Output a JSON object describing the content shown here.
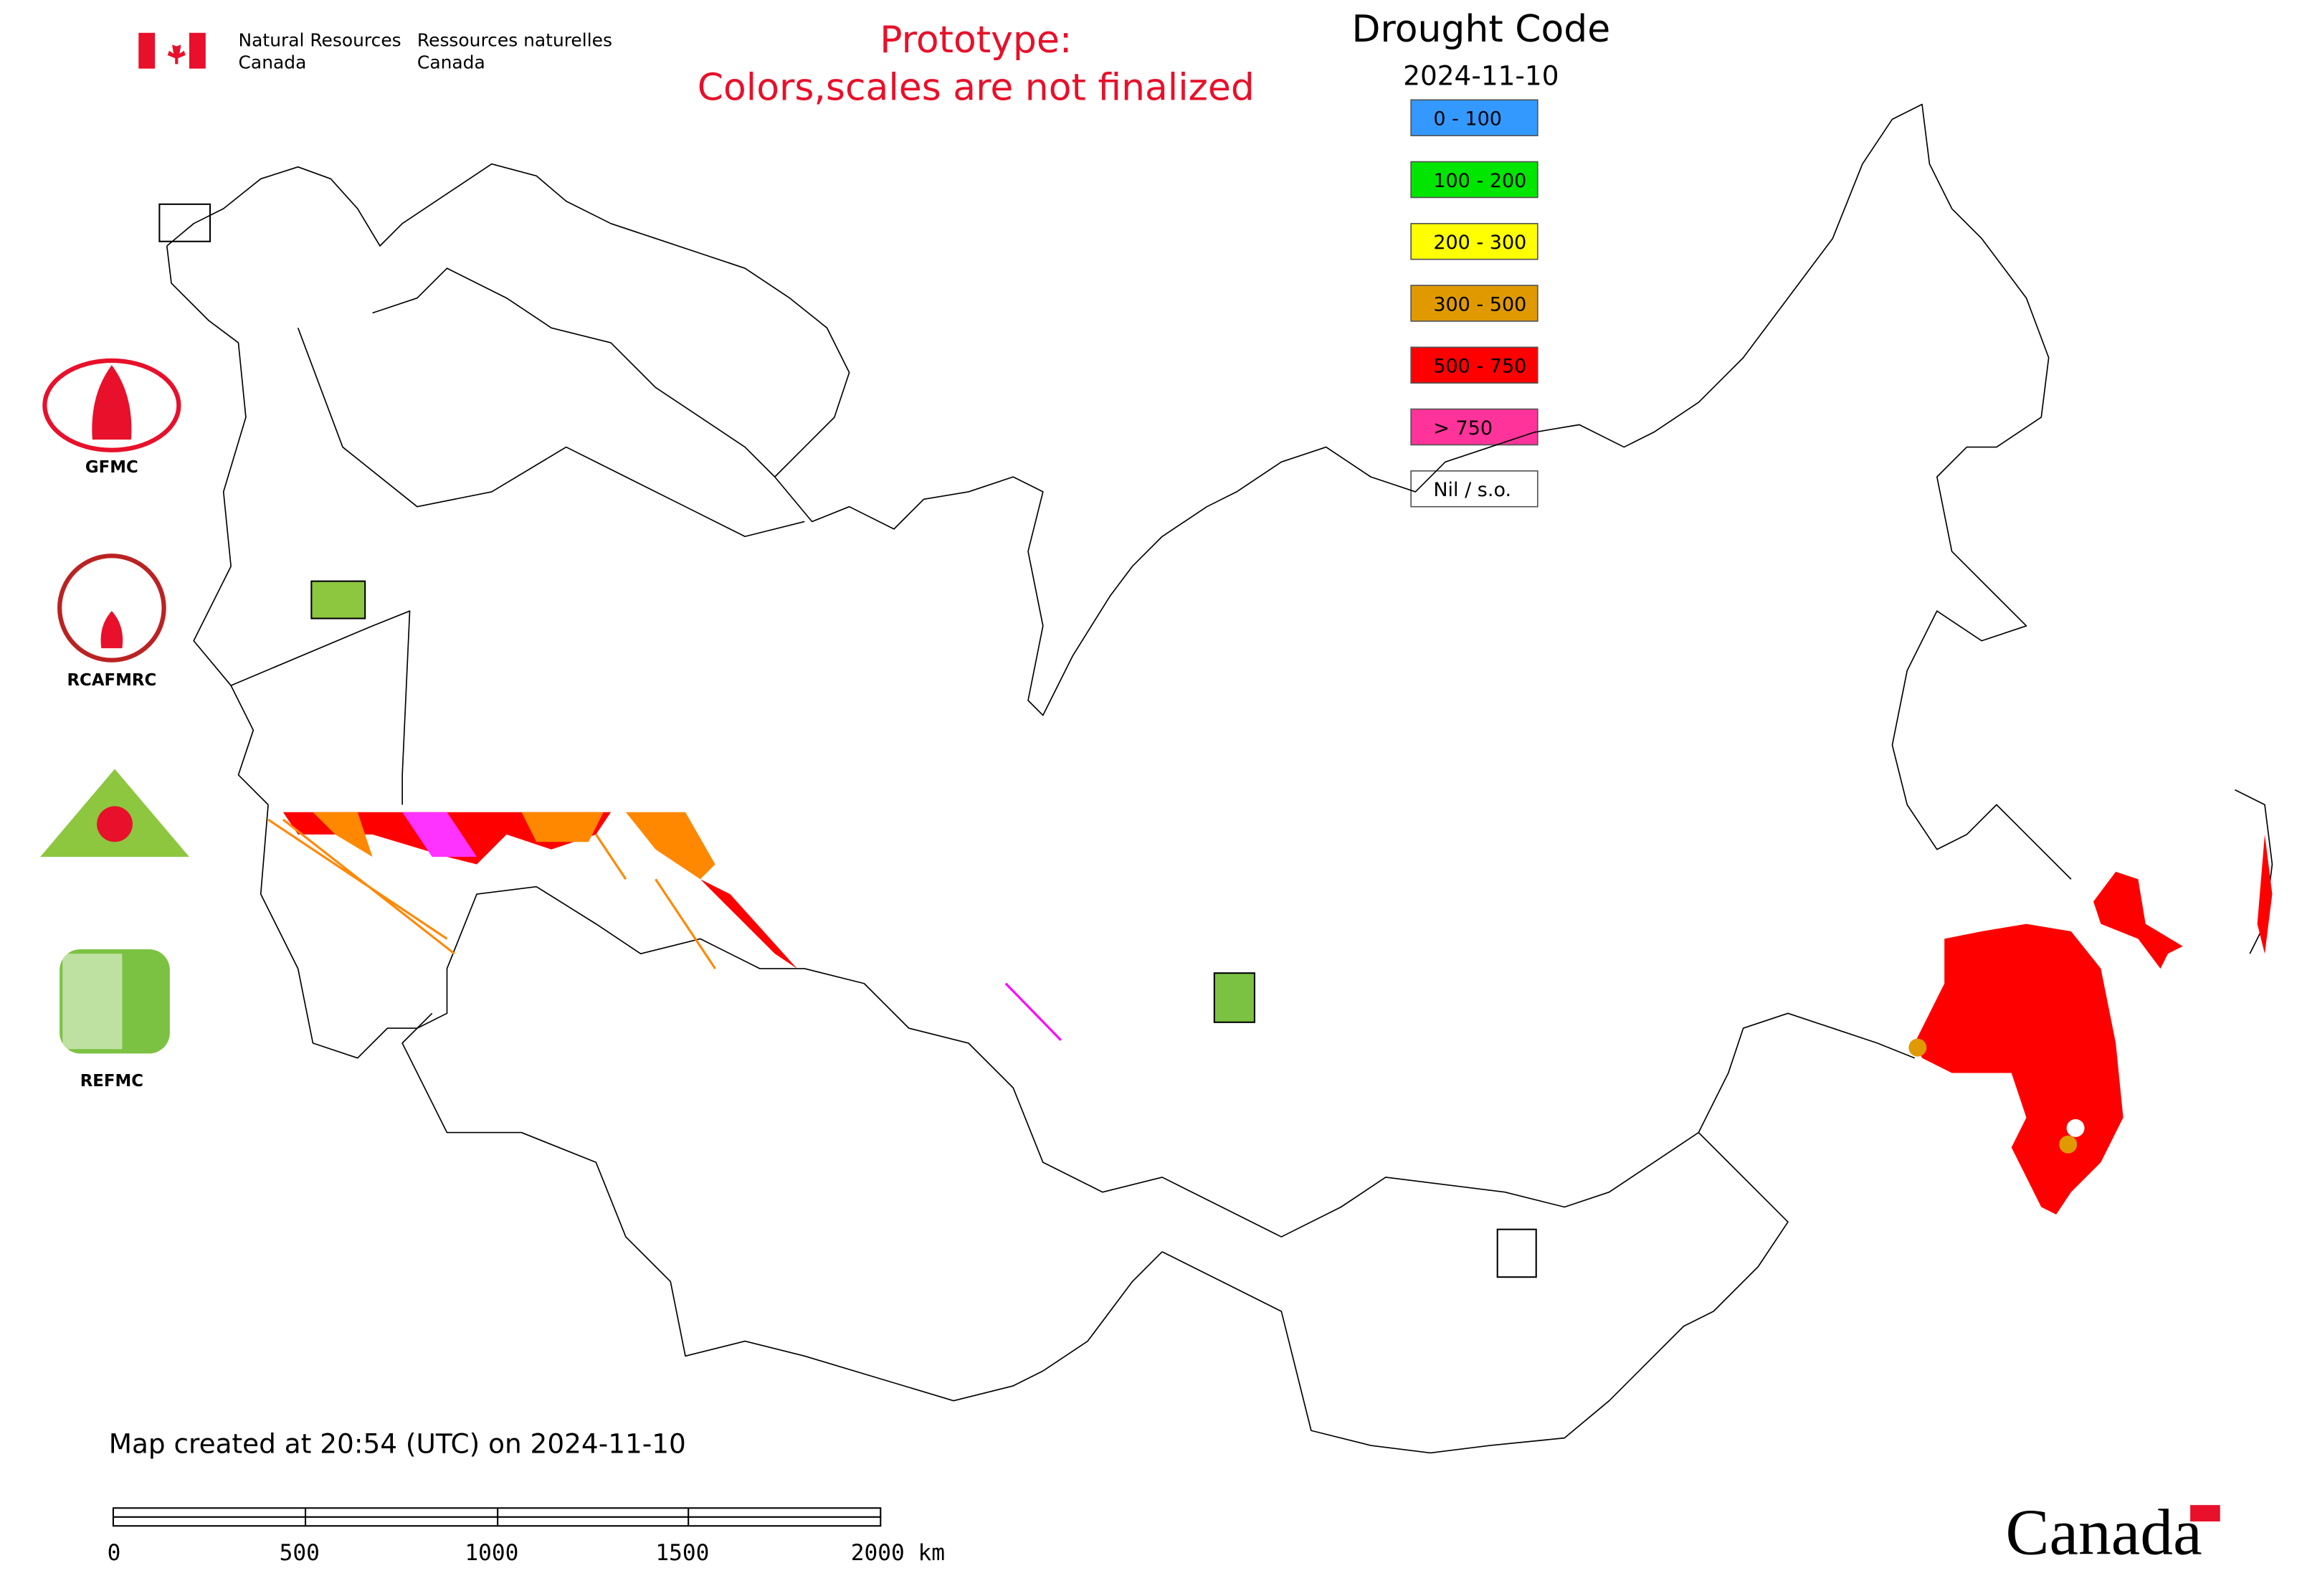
{
  "header": {
    "department_en": {
      "line1": "Natural Resources",
      "line2": "Canada"
    },
    "department_fr": {
      "line1": "Ressources naturelles",
      "line2": "Canada"
    }
  },
  "notice": {
    "line1": "Prototype:",
    "line2": "Colors,scales are not finalized"
  },
  "legend": {
    "title": "Drought Code",
    "date": "2024-11-10",
    "items": [
      {
        "label": "0 - 100",
        "color": "#3399ff"
      },
      {
        "label": "100 - 200",
        "color": "#00e600"
      },
      {
        "label": "200 - 300",
        "color": "#ffff00"
      },
      {
        "label": "300 - 500",
        "color": "#e09a00"
      },
      {
        "label": "500 - 750",
        "color": "#ff0000"
      },
      {
        "label": "> 750",
        "color": "#ff3399"
      },
      {
        "label": "Nil / s.o.",
        "color": "#ffffff"
      }
    ]
  },
  "logos": [
    {
      "label": "GFMC"
    },
    {
      "label": "RCAFMRC"
    },
    {
      "label": "REFMC"
    }
  ],
  "footer": {
    "created": "Map created at 20:54 (UTC) on 2024-11-10",
    "scale_labels": [
      "0",
      "500",
      "1000",
      "1500",
      "2000 km"
    ],
    "wordmark": "Canada"
  }
}
